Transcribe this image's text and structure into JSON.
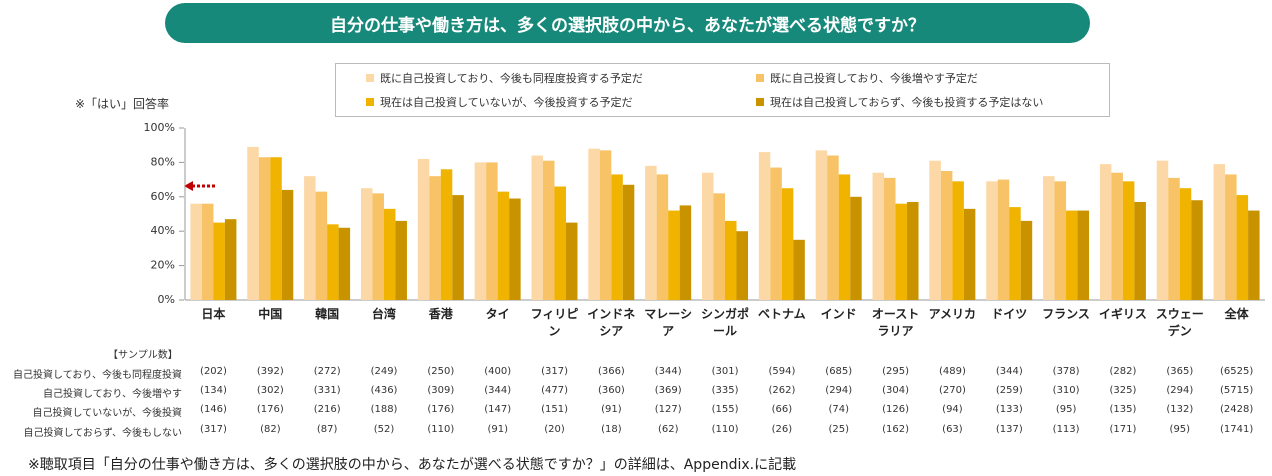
{
  "chart_data": {
    "type": "bar",
    "title": "自分の仕事や働き方は、多くの選択肢の中から、あなたが選べる状態ですか？",
    "y_axis_label": "※「はい」回答率",
    "categories": [
      "日本",
      "中国",
      "韓国",
      "台湾",
      "香港",
      "タイ",
      "フィリピン",
      "インドネシア",
      "マレーシア",
      "シンガポール",
      "ベトナム",
      "インド",
      "オーストラリア",
      "アメリカ",
      "ドイツ",
      "フランス",
      "イギリス",
      "スウェーデン",
      "全体"
    ],
    "series": [
      {
        "name": "既に自己投資しており、今後も同程度投資する予定だ",
        "color": "#fcd8a6",
        "values": [
          56,
          89,
          72,
          65,
          82,
          80,
          84,
          88,
          78,
          74,
          86,
          87,
          74,
          81,
          69,
          72,
          79,
          81,
          79
        ]
      },
      {
        "name": "既に自己投資しており、今後増やす予定だ",
        "color": "#f8c266",
        "values": [
          56,
          83,
          63,
          62,
          72,
          80,
          81,
          87,
          73,
          62,
          77,
          84,
          71,
          75,
          70,
          69,
          74,
          71,
          73
        ]
      },
      {
        "name": "現在は自己投資していないが、今後投資する予定だ",
        "color": "#efb300",
        "values": [
          45,
          83,
          44,
          53,
          76,
          63,
          66,
          73,
          52,
          46,
          65,
          73,
          56,
          69,
          54,
          52,
          69,
          65,
          61
        ]
      },
      {
        "name": "現在は自己投資しておらず、今後も投資する予定はない",
        "color": "#c99300",
        "values": [
          47,
          64,
          42,
          46,
          61,
          59,
          45,
          67,
          55,
          40,
          35,
          60,
          57,
          53,
          46,
          52,
          57,
          58,
          52
        ]
      }
    ],
    "ylim": [
      0,
      100
    ],
    "yticks": [
      {
        "value": 0,
        "label": "0%"
      },
      {
        "value": 20,
        "label": "20%"
      },
      {
        "value": 40,
        "label": "40%"
      },
      {
        "value": 60,
        "label": "60%"
      },
      {
        "value": 80,
        "label": "80%"
      },
      {
        "value": 100,
        "label": "100%"
      }
    ],
    "grid": false
  },
  "sample_table": {
    "title": "【サンプル数】",
    "row_labels": [
      "自己投資しており、今後も同程度投資",
      "自己投資しており、今後増やす",
      "自己投資していないが、今後投資",
      "自己投資しておらず、今後もしない"
    ],
    "rows": [
      [
        "(202)",
        "(392)",
        "(272)",
        "(249)",
        "(250)",
        "(400)",
        "(317)",
        "(366)",
        "(344)",
        "(301)",
        "(594)",
        "(685)",
        "(295)",
        "(489)",
        "(344)",
        "(378)",
        "(282)",
        "(365)",
        "(6525)"
      ],
      [
        "(134)",
        "(302)",
        "(331)",
        "(436)",
        "(309)",
        "(344)",
        "(477)",
        "(360)",
        "(369)",
        "(335)",
        "(262)",
        "(294)",
        "(304)",
        "(270)",
        "(259)",
        "(310)",
        "(325)",
        "(294)",
        "(5715)"
      ],
      [
        "(146)",
        "(176)",
        "(216)",
        "(188)",
        "(176)",
        "(147)",
        "(151)",
        "(91)",
        "(127)",
        "(155)",
        "(66)",
        "(74)",
        "(126)",
        "(94)",
        "(133)",
        "(95)",
        "(135)",
        "(132)",
        "(2428)"
      ],
      [
        "(317)",
        "(82)",
        "(87)",
        "(52)",
        "(110)",
        "(91)",
        "(20)",
        "(18)",
        "(62)",
        "(110)",
        "(26)",
        "(25)",
        "(162)",
        "(63)",
        "(137)",
        "(113)",
        "(171)",
        "(95)",
        "(1741)"
      ]
    ]
  },
  "footnote": "※聴取項目「自分の仕事や働き方は、多くの選択肢の中から、あなたが選べる状態ですか？」の詳細は、Appendix.に記載"
}
